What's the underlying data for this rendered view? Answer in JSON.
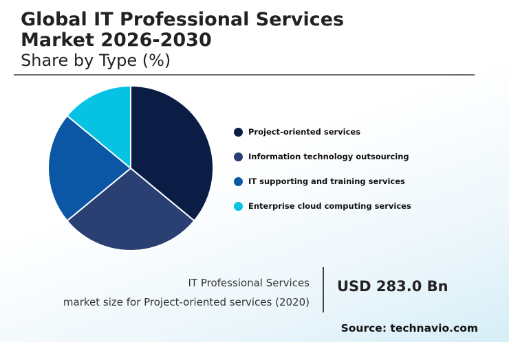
{
  "header": {
    "title_line1": "Global IT Professional Services",
    "title_line2": "Market 2026-2030",
    "subtitle": "Share by Type (%)"
  },
  "chart_data": {
    "type": "pie",
    "title": "Global IT Professional Services Market 2026-2030",
    "subtitle": "Share by Type (%)",
    "categories": [
      "Project-oriented services",
      "Information technology outsourcing",
      "IT supporting and training services",
      "Enterprise cloud computing services"
    ],
    "values": [
      36,
      28,
      22,
      14
    ],
    "colors": [
      "#0b1c45",
      "#2a3f72",
      "#0b57a6",
      "#06c2e3"
    ],
    "legend_position": "right"
  },
  "footer": {
    "desc_line1": "IT Professional Services",
    "desc_line2": "market size for Project-oriented services (2020)",
    "value": "USD 283.0 Bn",
    "source": "Source: technavio.com"
  }
}
